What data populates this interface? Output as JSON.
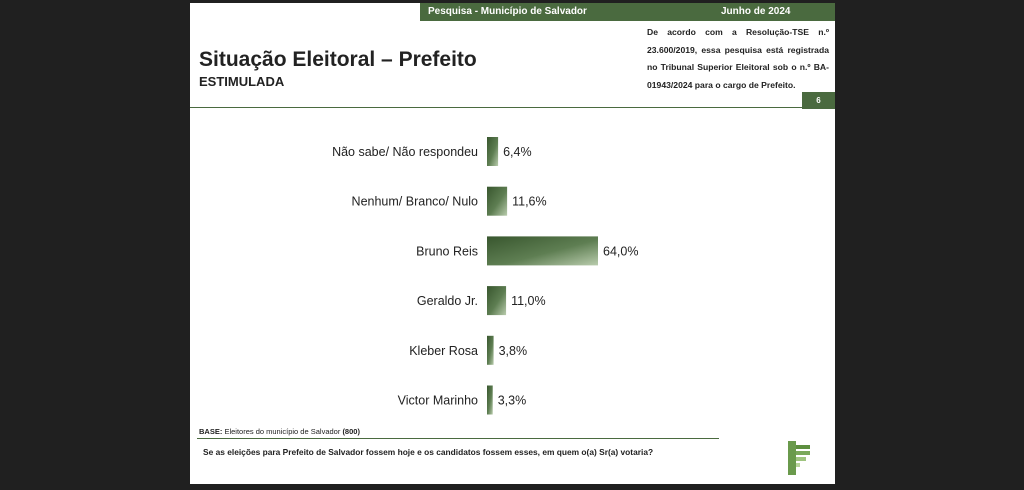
{
  "header": {
    "survey": "Pesquisa - Município de Salvador",
    "date": "Junho de 2024",
    "title": "Situação Eleitoral – Prefeito",
    "subtitle": "ESTIMULADA",
    "registration": "De acordo com a Resolução-TSE n.º 23.600/2019, essa pesquisa está registrada no Tribunal Superior Eleitoral sob o n.º BA-01943/2024 para o cargo de Prefeito.",
    "page_number": "6"
  },
  "footer": {
    "base_label": "BASE:",
    "base_text": "Eleitores do município de Salvador",
    "base_count": "(800)",
    "question": "Se as eleições para Prefeito de Salvador fossem hoje e os candidatos fossem esses, em quem o(a) Sr(a) votaria?"
  },
  "colors": {
    "bar_dark": "#38562e",
    "bar_light": "#b9ccad",
    "accent": "#4a6a3f"
  },
  "chart_data": {
    "type": "bar",
    "orientation": "horizontal",
    "categories": [
      "Não sabe/ Não respondeu",
      "Nenhum/ Branco/ Nulo",
      "Bruno Reis",
      "Geraldo Jr.",
      "Kleber Rosa",
      "Victor Marinho"
    ],
    "values": [
      6.4,
      11.6,
      64.0,
      11.0,
      3.8,
      3.3
    ],
    "value_labels": [
      "6,4%",
      "11,6%",
      "64,0%",
      "11,0%",
      "3,8%",
      "3,3%"
    ],
    "title": "",
    "xlabel": "",
    "ylabel": "",
    "xlim": [
      0,
      64
    ],
    "grid": false,
    "legend": "none"
  }
}
